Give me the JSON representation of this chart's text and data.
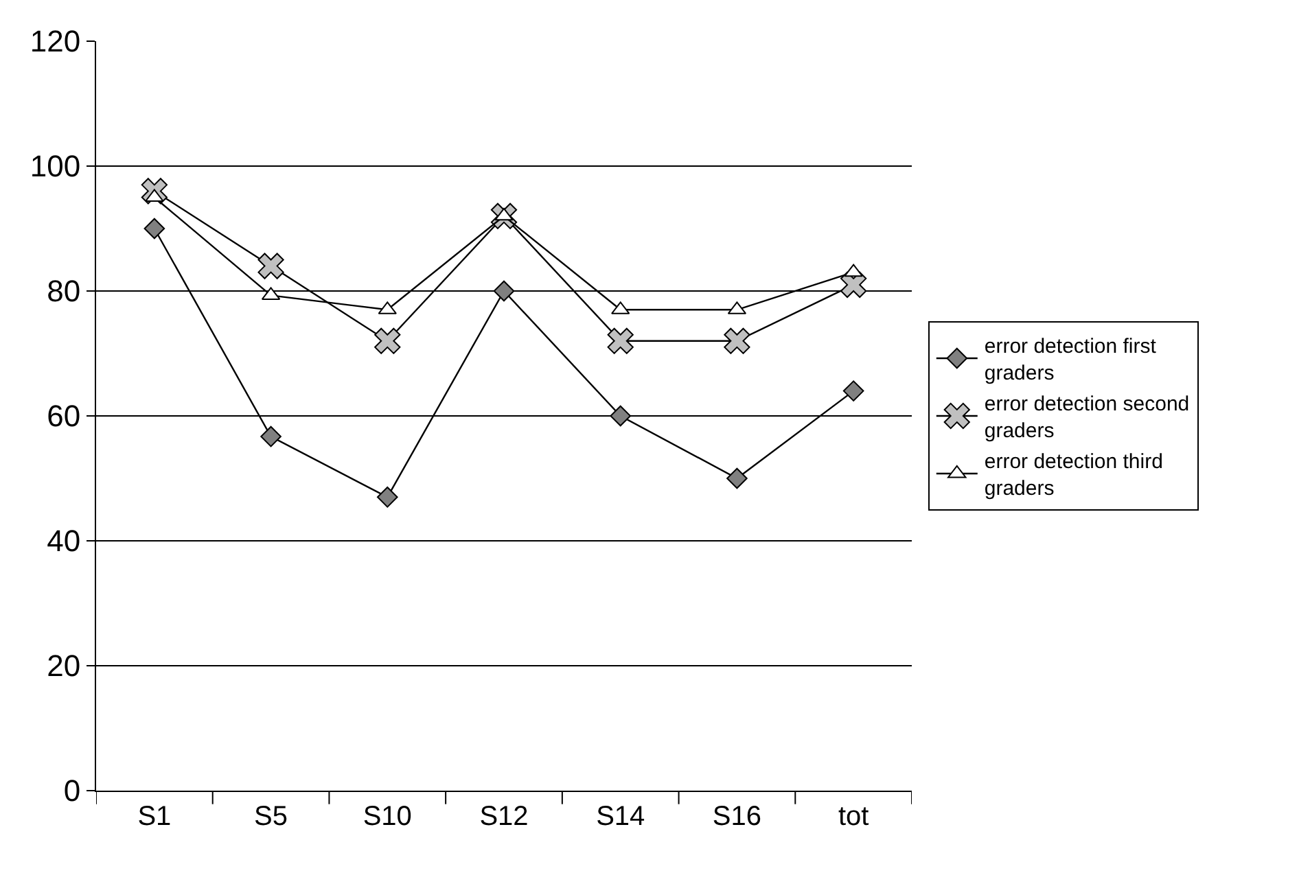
{
  "chart_data": {
    "type": "line",
    "categories": [
      "S1",
      "S5",
      "S10",
      "S12",
      "S14",
      "S16",
      "tot"
    ],
    "series": [
      {
        "name": "error detection first graders",
        "color": "#808080",
        "marker": "diamond",
        "values": [
          90,
          56.7,
          47,
          80,
          60,
          50,
          64
        ]
      },
      {
        "name": "error detection second graders",
        "color": "#c0c0c0",
        "marker": "cross",
        "values": [
          96,
          84,
          72,
          92,
          72,
          72,
          81
        ]
      },
      {
        "name": "error detection third graders",
        "color": "#ffffff",
        "marker": "triangle",
        "values": [
          95,
          79.3,
          77,
          92,
          77,
          77,
          83
        ]
      }
    ],
    "ylim": [
      0,
      120
    ],
    "yticks": [
      0,
      20,
      40,
      60,
      80,
      100,
      120
    ],
    "grid": "y",
    "legend": "right",
    "line_style": "solid"
  }
}
